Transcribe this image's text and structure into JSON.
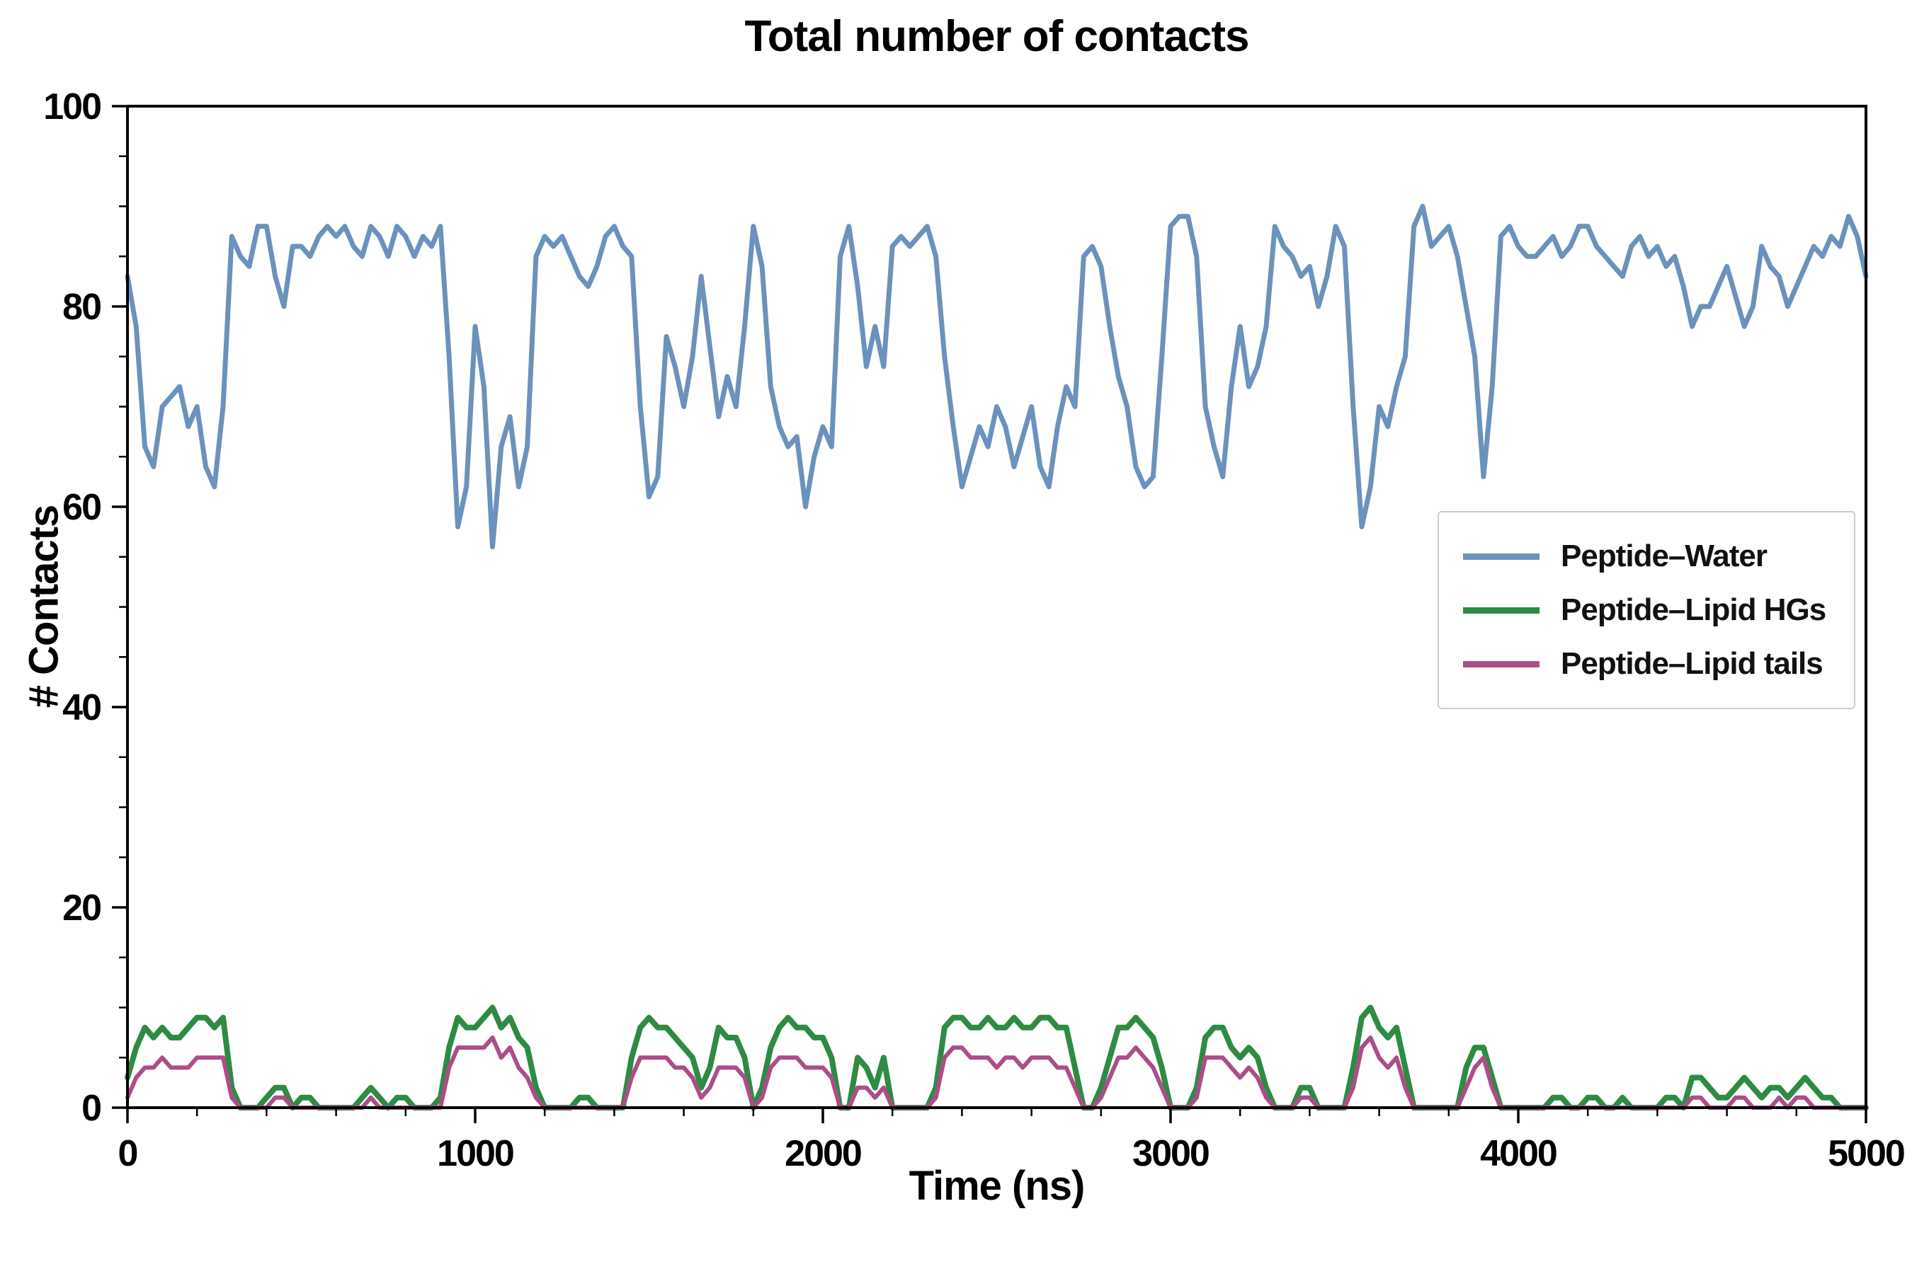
{
  "title": "Total number of contacts",
  "colors": {
    "peptide_water": "#6b92bd",
    "peptide_lipid_hgs": "#2e8b44",
    "peptide_lipid_tails": "#ad4d87",
    "axis": "#000000",
    "legend_border": "#cccccc",
    "background": "#ffffff"
  },
  "legend": {
    "items": [
      {
        "label": "Peptide–Water"
      },
      {
        "label": "Peptide–Lipid HGs"
      },
      {
        "label": "Peptide–Lipid tails"
      }
    ]
  },
  "chart_data": {
    "type": "line",
    "title": "Total number of contacts",
    "xlabel": "Time (ns)",
    "ylabel": "# Contacts",
    "xlim": [
      0,
      5000
    ],
    "ylim": [
      0,
      100
    ],
    "xticks": [
      0,
      1000,
      2000,
      3000,
      4000,
      5000
    ],
    "yticks": [
      0,
      20,
      40,
      60,
      80,
      100
    ],
    "x_minor_step": 200,
    "y_minor_step": 5,
    "grid": false,
    "legend_position": "center-right-inside",
    "x": [
      0,
      25,
      50,
      75,
      100,
      125,
      150,
      175,
      200,
      225,
      250,
      275,
      300,
      325,
      350,
      375,
      400,
      425,
      450,
      475,
      500,
      525,
      550,
      575,
      600,
      625,
      650,
      675,
      700,
      725,
      750,
      775,
      800,
      825,
      850,
      875,
      900,
      925,
      950,
      975,
      1000,
      1025,
      1050,
      1075,
      1100,
      1125,
      1150,
      1175,
      1200,
      1225,
      1250,
      1275,
      1300,
      1325,
      1350,
      1375,
      1400,
      1425,
      1450,
      1475,
      1500,
      1525,
      1550,
      1575,
      1600,
      1625,
      1650,
      1675,
      1700,
      1725,
      1750,
      1775,
      1800,
      1825,
      1850,
      1875,
      1900,
      1925,
      1950,
      1975,
      2000,
      2025,
      2050,
      2075,
      2100,
      2125,
      2150,
      2175,
      2200,
      2225,
      2250,
      2275,
      2300,
      2325,
      2350,
      2375,
      2400,
      2425,
      2450,
      2475,
      2500,
      2525,
      2550,
      2575,
      2600,
      2625,
      2650,
      2675,
      2700,
      2725,
      2750,
      2775,
      2800,
      2825,
      2850,
      2875,
      2900,
      2925,
      2950,
      2975,
      3000,
      3025,
      3050,
      3075,
      3100,
      3125,
      3150,
      3175,
      3200,
      3225,
      3250,
      3275,
      3300,
      3325,
      3350,
      3375,
      3400,
      3425,
      3450,
      3475,
      3500,
      3525,
      3550,
      3575,
      3600,
      3625,
      3650,
      3675,
      3700,
      3725,
      3750,
      3775,
      3800,
      3825,
      3850,
      3875,
      3900,
      3925,
      3950,
      3975,
      4000,
      4025,
      4050,
      4075,
      4100,
      4125,
      4150,
      4175,
      4200,
      4225,
      4250,
      4275,
      4300,
      4325,
      4350,
      4375,
      4400,
      4425,
      4450,
      4475,
      4500,
      4525,
      4550,
      4575,
      4600,
      4625,
      4650,
      4675,
      4700,
      4725,
      4750,
      4775,
      4800,
      4825,
      4850,
      4875,
      4900,
      4925,
      4950,
      4975,
      5000
    ],
    "series": [
      {
        "name": "Peptide–Water",
        "color": "#6b92bd",
        "width": 7,
        "values": [
          83,
          78,
          66,
          64,
          70,
          71,
          72,
          68,
          70,
          64,
          62,
          70,
          87,
          85,
          84,
          88,
          88,
          83,
          80,
          86,
          86,
          85,
          87,
          88,
          87,
          88,
          86,
          85,
          88,
          87,
          85,
          88,
          87,
          85,
          87,
          86,
          88,
          75,
          58,
          62,
          78,
          72,
          56,
          66,
          69,
          62,
          66,
          85,
          87,
          86,
          87,
          85,
          83,
          82,
          84,
          87,
          88,
          86,
          85,
          70,
          61,
          63,
          77,
          74,
          70,
          75,
          83,
          76,
          69,
          73,
          70,
          78,
          88,
          84,
          72,
          68,
          66,
          67,
          60,
          65,
          68,
          66,
          85,
          88,
          82,
          74,
          78,
          74,
          86,
          87,
          86,
          87,
          88,
          85,
          75,
          68,
          62,
          65,
          68,
          66,
          70,
          68,
          64,
          67,
          70,
          64,
          62,
          68,
          72,
          70,
          85,
          86,
          84,
          78,
          73,
          70,
          64,
          62,
          63,
          75,
          88,
          89,
          89,
          85,
          70,
          66,
          63,
          72,
          78,
          72,
          74,
          78,
          88,
          86,
          85,
          83,
          84,
          80,
          83,
          88,
          86,
          70,
          58,
          62,
          70,
          68,
          72,
          75,
          88,
          90,
          86,
          87,
          88,
          85,
          80,
          75,
          63,
          72,
          87,
          88,
          86,
          85,
          85,
          86,
          87,
          85,
          86,
          88,
          88,
          86,
          85,
          84,
          83,
          86,
          87,
          85,
          86,
          84,
          85,
          82,
          78,
          80,
          80,
          82,
          84,
          81,
          78,
          80,
          86,
          84,
          83,
          80,
          82,
          84,
          86,
          85,
          87,
          86,
          89,
          87,
          83
        ]
      },
      {
        "name": "Peptide–Lipid HGs",
        "color": "#2e8b44",
        "width": 8,
        "values": [
          3,
          6,
          8,
          7,
          8,
          7,
          7,
          8,
          9,
          9,
          8,
          9,
          2,
          0,
          0,
          0,
          1,
          2,
          2,
          0,
          1,
          1,
          0,
          0,
          0,
          0,
          0,
          1,
          2,
          1,
          0,
          1,
          1,
          0,
          0,
          0,
          1,
          6,
          9,
          8,
          8,
          9,
          10,
          8,
          9,
          7,
          6,
          2,
          0,
          0,
          0,
          0,
          1,
          1,
          0,
          0,
          0,
          0,
          5,
          8,
          9,
          8,
          8,
          7,
          6,
          5,
          2,
          4,
          8,
          7,
          7,
          5,
          0,
          2,
          6,
          8,
          9,
          8,
          8,
          7,
          7,
          5,
          0,
          0,
          5,
          4,
          2,
          5,
          0,
          0,
          0,
          0,
          0,
          2,
          8,
          9,
          9,
          8,
          8,
          9,
          8,
          8,
          9,
          8,
          8,
          9,
          9,
          8,
          8,
          4,
          0,
          0,
          2,
          5,
          8,
          8,
          9,
          8,
          7,
          4,
          0,
          0,
          0,
          2,
          7,
          8,
          8,
          6,
          5,
          6,
          5,
          2,
          0,
          0,
          0,
          2,
          2,
          0,
          0,
          0,
          0,
          4,
          9,
          10,
          8,
          7,
          8,
          4,
          0,
          0,
          0,
          0,
          0,
          0,
          4,
          6,
          6,
          3,
          0,
          0,
          0,
          0,
          0,
          0,
          1,
          1,
          0,
          0,
          1,
          1,
          0,
          0,
          1,
          0,
          0,
          0,
          0,
          1,
          1,
          0,
          3,
          3,
          2,
          1,
          1,
          2,
          3,
          2,
          1,
          2,
          2,
          1,
          2,
          3,
          2,
          1,
          1,
          0,
          0,
          0,
          0
        ]
      },
      {
        "name": "Peptide–Lipid tails",
        "color": "#ad4d87",
        "width": 6,
        "values": [
          1,
          3,
          4,
          4,
          5,
          4,
          4,
          4,
          5,
          5,
          5,
          5,
          1,
          0,
          0,
          0,
          0,
          1,
          1,
          0,
          0,
          0,
          0,
          0,
          0,
          0,
          0,
          0,
          1,
          0,
          0,
          0,
          0,
          0,
          0,
          0,
          0,
          4,
          6,
          6,
          6,
          6,
          7,
          5,
          6,
          4,
          3,
          1,
          0,
          0,
          0,
          0,
          0,
          0,
          0,
          0,
          0,
          0,
          3,
          5,
          5,
          5,
          5,
          4,
          4,
          3,
          1,
          2,
          4,
          4,
          4,
          3,
          0,
          1,
          4,
          5,
          5,
          5,
          4,
          4,
          4,
          3,
          0,
          0,
          2,
          2,
          1,
          2,
          0,
          0,
          0,
          0,
          0,
          1,
          5,
          6,
          6,
          5,
          5,
          5,
          4,
          5,
          5,
          4,
          5,
          5,
          5,
          4,
          4,
          2,
          0,
          0,
          1,
          3,
          5,
          5,
          6,
          5,
          4,
          2,
          0,
          0,
          0,
          1,
          5,
          5,
          5,
          4,
          3,
          4,
          3,
          1,
          0,
          0,
          0,
          1,
          1,
          0,
          0,
          0,
          0,
          2,
          6,
          7,
          5,
          4,
          5,
          2,
          0,
          0,
          0,
          0,
          0,
          0,
          2,
          4,
          5,
          2,
          0,
          0,
          0,
          0,
          0,
          0,
          0,
          0,
          0,
          0,
          0,
          0,
          0,
          0,
          0,
          0,
          0,
          0,
          0,
          0,
          0,
          0,
          1,
          1,
          0,
          0,
          0,
          1,
          1,
          0,
          0,
          0,
          1,
          0,
          1,
          1,
          0,
          0,
          0,
          0,
          0,
          0,
          0
        ]
      }
    ]
  }
}
